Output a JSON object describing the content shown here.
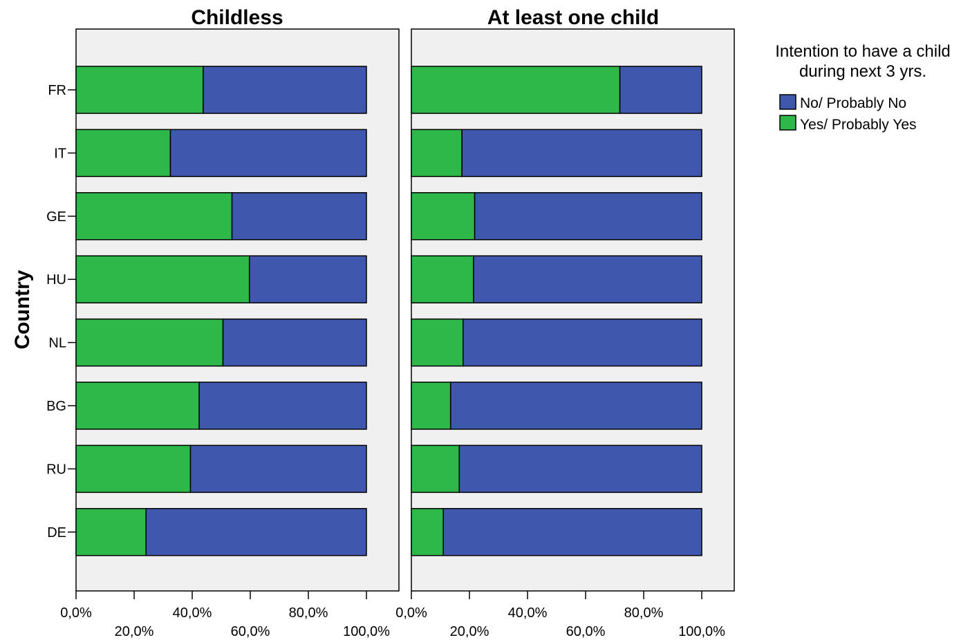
{
  "chart_data": {
    "type": "bar",
    "orientation": "horizontal",
    "stacked": true,
    "ylabel": "Country",
    "categories": [
      "FR",
      "IT",
      "GE",
      "HU",
      "NL",
      "BG",
      "RU",
      "DE"
    ],
    "xlim": [
      0,
      100
    ],
    "x_ticks": [
      "0,0%",
      "20,0%",
      "40,0%",
      "60,0%",
      "80,0%",
      "100,0%"
    ],
    "legend": {
      "title_line1": "Intention to have a child",
      "title_line2": "during next 3 yrs.",
      "placement": "right",
      "entries": [
        {
          "label": "No/ Probably No",
          "color": "#3f58ad"
        },
        {
          "label": "Yes/ Probably Yes",
          "color": "#2eb84a"
        }
      ]
    },
    "panels": [
      {
        "title": "Childless",
        "series": [
          {
            "name": "Yes/ Probably Yes",
            "color": "#2eb84a",
            "values": [
              43.8,
              32.5,
              53.7,
              59.7,
              50.6,
              42.4,
              39.4,
              24.1
            ]
          },
          {
            "name": "No/ Probably No",
            "color": "#3f58ad",
            "values": [
              56.2,
              67.5,
              46.3,
              40.3,
              49.4,
              57.6,
              60.6,
              75.9
            ]
          }
        ]
      },
      {
        "title": "At least one child",
        "series": [
          {
            "name": "Yes/ Probably Yes",
            "color": "#2eb84a",
            "values": [
              71.8,
              17.4,
              21.8,
              21.4,
              17.8,
              13.5,
              16.5,
              11.0
            ]
          },
          {
            "name": "No/ Probably No",
            "color": "#3f58ad",
            "values": [
              28.2,
              82.6,
              78.2,
              78.6,
              82.2,
              86.5,
              83.5,
              89.0
            ]
          }
        ]
      }
    ]
  }
}
